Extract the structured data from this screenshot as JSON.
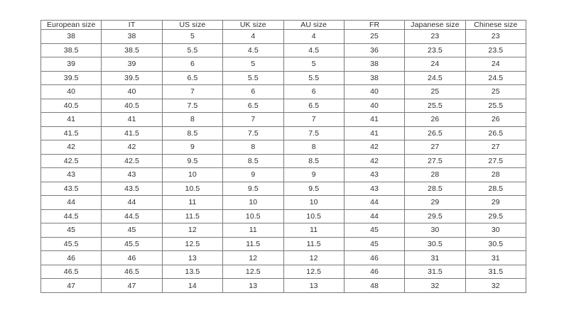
{
  "page": {
    "background": "#ffffff"
  },
  "style": {
    "border_color": "#7b7b7b",
    "text_color": "#2e2e2e"
  },
  "chart_data": {
    "type": "table",
    "columns": [
      "European size",
      "IT",
      "US size",
      "UK size",
      "AU size",
      "FR",
      "Japanese size",
      "Chinese size"
    ],
    "rows": [
      [
        "38",
        "38",
        "5",
        "4",
        "4",
        "25",
        "23",
        "23"
      ],
      [
        "38.5",
        "38.5",
        "5.5",
        "4.5",
        "4.5",
        "36",
        "23.5",
        "23.5"
      ],
      [
        "39",
        "39",
        "6",
        "5",
        "5",
        "38",
        "24",
        "24"
      ],
      [
        "39.5",
        "39.5",
        "6.5",
        "5.5",
        "5.5",
        "38",
        "24.5",
        "24.5"
      ],
      [
        "40",
        "40",
        "7",
        "6",
        "6",
        "40",
        "25",
        "25"
      ],
      [
        "40.5",
        "40.5",
        "7.5",
        "6.5",
        "6.5",
        "40",
        "25.5",
        "25.5"
      ],
      [
        "41",
        "41",
        "8",
        "7",
        "7",
        "41",
        "26",
        "26"
      ],
      [
        "41.5",
        "41.5",
        "8.5",
        "7.5",
        "7.5",
        "41",
        "26.5",
        "26.5"
      ],
      [
        "42",
        "42",
        "9",
        "8",
        "8",
        "42",
        "27",
        "27"
      ],
      [
        "42.5",
        "42.5",
        "9.5",
        "8.5",
        "8.5",
        "42",
        "27.5",
        "27.5"
      ],
      [
        "43",
        "43",
        "10",
        "9",
        "9",
        "43",
        "28",
        "28"
      ],
      [
        "43.5",
        "43.5",
        "10.5",
        "9.5",
        "9.5",
        "43",
        "28.5",
        "28.5"
      ],
      [
        "44",
        "44",
        "11",
        "10",
        "10",
        "44",
        "29",
        "29"
      ],
      [
        "44.5",
        "44.5",
        "11.5",
        "10.5",
        "10.5",
        "44",
        "29.5",
        "29.5"
      ],
      [
        "45",
        "45",
        "12",
        "11",
        "11",
        "45",
        "30",
        "30"
      ],
      [
        "45.5",
        "45.5",
        "12.5",
        "11.5",
        "11.5",
        "45",
        "30.5",
        "30.5"
      ],
      [
        "46",
        "46",
        "13",
        "12",
        "12",
        "46",
        "31",
        "31"
      ],
      [
        "46.5",
        "46.5",
        "13.5",
        "12.5",
        "12.5",
        "46",
        "31.5",
        "31.5"
      ],
      [
        "47",
        "47",
        "14",
        "13",
        "13",
        "48",
        "32",
        "32"
      ]
    ]
  }
}
